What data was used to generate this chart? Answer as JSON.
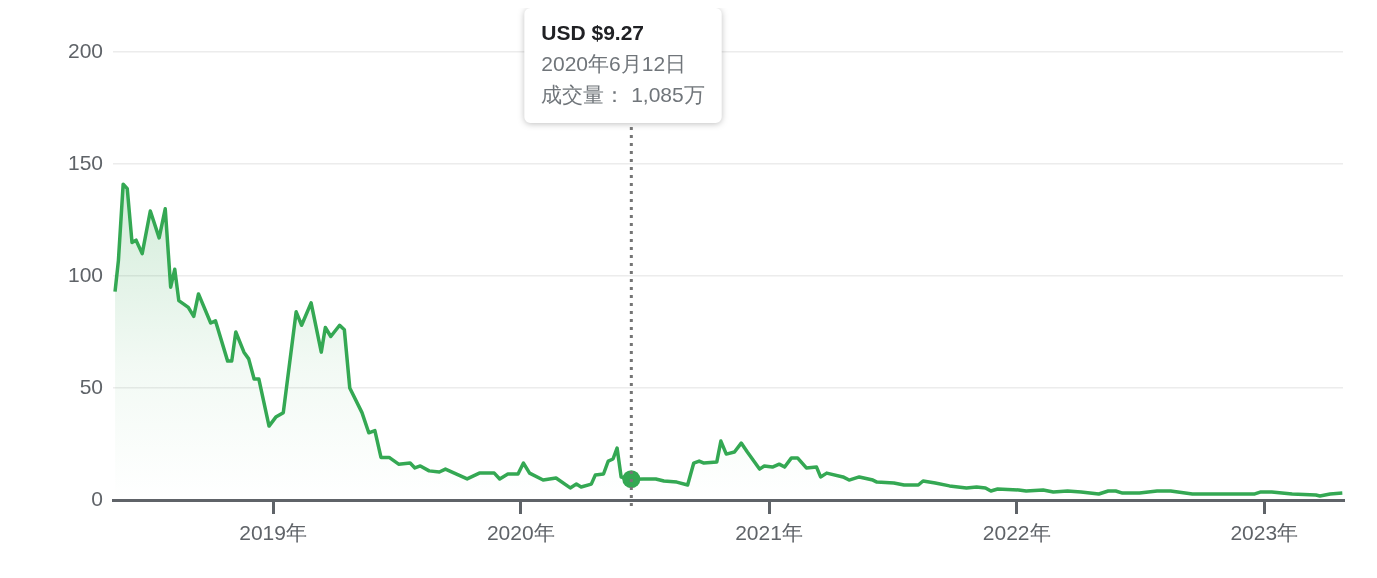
{
  "chart_data": {
    "type": "area",
    "x": [
      "2018-05-13",
      "2018-05-18",
      "2018-05-25",
      "2018-05-31",
      "2018-06-07",
      "2018-06-13",
      "2018-06-22",
      "2018-07-04",
      "2018-07-17",
      "2018-07-26",
      "2018-08-03",
      "2018-08-09",
      "2018-08-15",
      "2018-08-29",
      "2018-09-06",
      "2018-09-13",
      "2018-10-01",
      "2018-10-08",
      "2018-10-26",
      "2018-11-01",
      "2018-11-07",
      "2018-11-19",
      "2018-11-26",
      "2018-12-04",
      "2018-12-11",
      "2018-12-26",
      "2019-01-05",
      "2019-01-16",
      "2019-02-04",
      "2019-02-12",
      "2019-02-26",
      "2019-03-13",
      "2019-03-19",
      "2019-03-27",
      "2019-04-09",
      "2019-04-16",
      "2019-04-24",
      "2019-05-12",
      "2019-05-22",
      "2019-05-31",
      "2019-06-09",
      "2019-06-21",
      "2019-07-05",
      "2019-07-22",
      "2019-07-29",
      "2019-08-06",
      "2019-08-19",
      "2019-09-03",
      "2019-09-12",
      "2019-10-14",
      "2019-11-01",
      "2019-11-23",
      "2019-12-01",
      "2019-12-13",
      "2019-12-28",
      "2020-01-05",
      "2020-01-14",
      "2020-02-03",
      "2020-02-22",
      "2020-03-14",
      "2020-03-23",
      "2020-03-30",
      "2020-04-14",
      "2020-04-20",
      "2020-05-02",
      "2020-05-09",
      "2020-05-16",
      "2020-05-22",
      "2020-05-28",
      "2020-06-12",
      "2020-06-30",
      "2020-07-18",
      "2020-07-30",
      "2020-08-18",
      "2020-09-03",
      "2020-09-12",
      "2020-09-20",
      "2020-09-27",
      "2020-10-16",
      "2020-10-22",
      "2020-10-30",
      "2020-11-11",
      "2020-11-21",
      "2020-11-30",
      "2020-12-18",
      "2020-12-25",
      "2021-01-06",
      "2021-01-16",
      "2021-01-24",
      "2021-02-03",
      "2021-02-12",
      "2021-02-25",
      "2021-03-12",
      "2021-03-18",
      "2021-03-27",
      "2021-04-20",
      "2021-04-29",
      "2021-05-14",
      "2021-06-03",
      "2021-06-09",
      "2021-07-04",
      "2021-07-19",
      "2021-08-09",
      "2021-08-16",
      "2021-09-03",
      "2021-09-24",
      "2021-10-19",
      "2021-11-03",
      "2021-11-16",
      "2021-11-24",
      "2021-12-04",
      "2022-01-04",
      "2022-01-15",
      "2022-02-09",
      "2022-02-24",
      "2022-03-17",
      "2022-04-06",
      "2022-05-02",
      "2022-05-16",
      "2022-05-27",
      "2022-06-06",
      "2022-07-01",
      "2022-07-27",
      "2022-08-16",
      "2022-09-17",
      "2022-10-27",
      "2022-12-18",
      "2022-12-27",
      "2023-01-12",
      "2023-02-11",
      "2023-03-18",
      "2023-03-24",
      "2023-04-08",
      "2023-04-26"
    ],
    "series": [
      {
        "color": "#34a853",
        "values": [
          93,
          107,
          141,
          139,
          115,
          116,
          110,
          129,
          117,
          130,
          95,
          103,
          89,
          86,
          82,
          92,
          79,
          80,
          62,
          62,
          75,
          66,
          63,
          54,
          54,
          33,
          37,
          39,
          84,
          78,
          88,
          66,
          77,
          73,
          78,
          76,
          50,
          39,
          30,
          31,
          19,
          19,
          16,
          16.5,
          14.3,
          15.2,
          13,
          12.5,
          13.8,
          9.4,
          12,
          12,
          9.4,
          11.6,
          11.6,
          16.5,
          12,
          8.9,
          9.8,
          5.4,
          7.1,
          5.8,
          7.1,
          11.2,
          11.6,
          17.4,
          18.3,
          23.2,
          10.3,
          9.3,
          9.4,
          9.4,
          8.5,
          8,
          6.7,
          16.5,
          17.4,
          16.5,
          17,
          26.3,
          20.5,
          21.4,
          25.4,
          21.4,
          13.8,
          15.2,
          14.7,
          16,
          14.7,
          18.8,
          18.8,
          14.3,
          14.7,
          10.3,
          12,
          10.3,
          8.9,
          10.3,
          8.9,
          8,
          7.6,
          6.7,
          6.7,
          8.5,
          7.6,
          6.3,
          5.4,
          5.8,
          5.4,
          4,
          4.9,
          4.5,
          4,
          4.5,
          3.6,
          4,
          3.6,
          2.7,
          4,
          4,
          3.1,
          3.1,
          4,
          4,
          2.7,
          2.7,
          2.7,
          3.6,
          3.6,
          2.7,
          2.2,
          1.8,
          2.7,
          3.1
        ]
      }
    ],
    "xlim": [
      "2018-05-10",
      "2023-04-27"
    ],
    "xticks": [
      {
        "value": "2019-01-01",
        "label": "2019年"
      },
      {
        "value": "2020-01-01",
        "label": "2020年"
      },
      {
        "value": "2021-01-01",
        "label": "2021年"
      },
      {
        "value": "2022-01-01",
        "label": "2022年"
      },
      {
        "value": "2023-01-01",
        "label": "2023年"
      }
    ],
    "ylim": [
      0,
      200
    ],
    "yticks": [
      0,
      50,
      100,
      150,
      200
    ],
    "grid": "y",
    "legend": false,
    "marker": "none",
    "line_style": "solid",
    "ref_lines": [
      {
        "axis": "x",
        "value": "2020-06-12",
        "color": "#757575",
        "line_style": "dotted"
      }
    ],
    "annotations": [
      "USD $9.27",
      "2020年6月12日",
      "成交量： 1,085万"
    ]
  }
}
